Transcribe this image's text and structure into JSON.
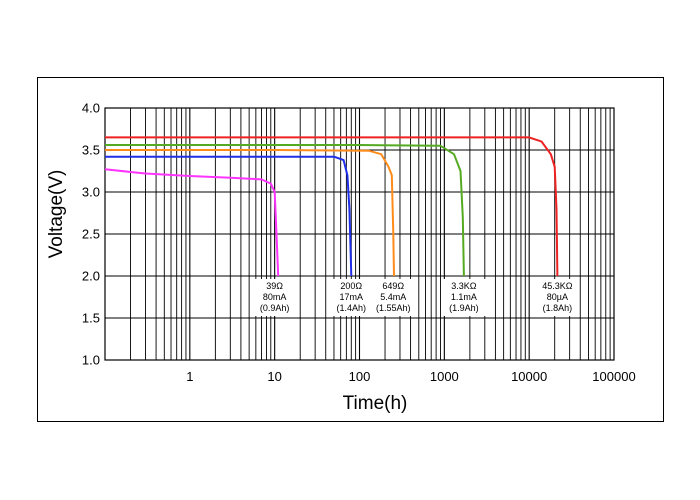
{
  "chart_data": {
    "type": "line",
    "xlabel": "Time(h)",
    "ylabel": "Voltage(V)",
    "xscale": "log",
    "xlim": [
      0.1,
      100000
    ],
    "ylim": [
      1.0,
      4.0
    ],
    "grid": true,
    "x_tick_labels": [
      "1",
      "10",
      "100",
      "1000",
      "10000",
      "100000"
    ],
    "x_tick_values": [
      1,
      10,
      100,
      1000,
      10000,
      100000
    ],
    "y_tick_labels": [
      "1.0",
      "1.5",
      "2.0",
      "2.5",
      "3.0",
      "3.5",
      "4.0"
    ],
    "y_tick_values": [
      1.0,
      1.5,
      2.0,
      2.5,
      3.0,
      3.5,
      4.0
    ],
    "series": [
      {
        "color": "#ff33ff",
        "points": [
          [
            0.1,
            3.27
          ],
          [
            0.3,
            3.22
          ],
          [
            1,
            3.19
          ],
          [
            3,
            3.17
          ],
          [
            7,
            3.15
          ],
          [
            9,
            3.1
          ],
          [
            10,
            3.0
          ],
          [
            10.5,
            2.5
          ],
          [
            11,
            2.0
          ]
        ],
        "annotation": [
          "39Ω",
          "80mA",
          "(0.9Ah)"
        ],
        "annotation_x": 10
      },
      {
        "color": "#1f2ee8",
        "points": [
          [
            0.1,
            3.42
          ],
          [
            10,
            3.42
          ],
          [
            50,
            3.42
          ],
          [
            65,
            3.38
          ],
          [
            72,
            3.2
          ],
          [
            76,
            2.8
          ],
          [
            80,
            2.0
          ]
        ],
        "annotation": [
          "200Ω",
          "17mA",
          "(1.4Ah)"
        ],
        "annotation_x": 80
      },
      {
        "color": "#ff8c1a",
        "points": [
          [
            0.1,
            3.5
          ],
          [
            10,
            3.5
          ],
          [
            130,
            3.49
          ],
          [
            180,
            3.45
          ],
          [
            220,
            3.3
          ],
          [
            240,
            3.2
          ],
          [
            250,
            2.5
          ],
          [
            255,
            2.0
          ]
        ],
        "annotation": [
          "649Ω",
          "5.4mA",
          "(1.55Ah)"
        ],
        "annotation_x": 250
      },
      {
        "color": "#55aa22",
        "points": [
          [
            0.1,
            3.56
          ],
          [
            100,
            3.56
          ],
          [
            900,
            3.55
          ],
          [
            1300,
            3.45
          ],
          [
            1550,
            3.25
          ],
          [
            1650,
            2.7
          ],
          [
            1700,
            2.0
          ]
        ],
        "annotation": [
          "3.3KΩ",
          "1.1mA",
          "(1.9Ah)"
        ],
        "annotation_x": 1700
      },
      {
        "color": "#ee2222",
        "points": [
          [
            0.1,
            3.65
          ],
          [
            100,
            3.65
          ],
          [
            10000,
            3.65
          ],
          [
            14000,
            3.6
          ],
          [
            18000,
            3.45
          ],
          [
            20000,
            3.3
          ],
          [
            21000,
            2.8
          ],
          [
            21500,
            2.0
          ]
        ],
        "annotation": [
          "45.3KΩ",
          "80µA",
          "(1.8Ah)"
        ],
        "annotation_x": 21500
      }
    ]
  }
}
